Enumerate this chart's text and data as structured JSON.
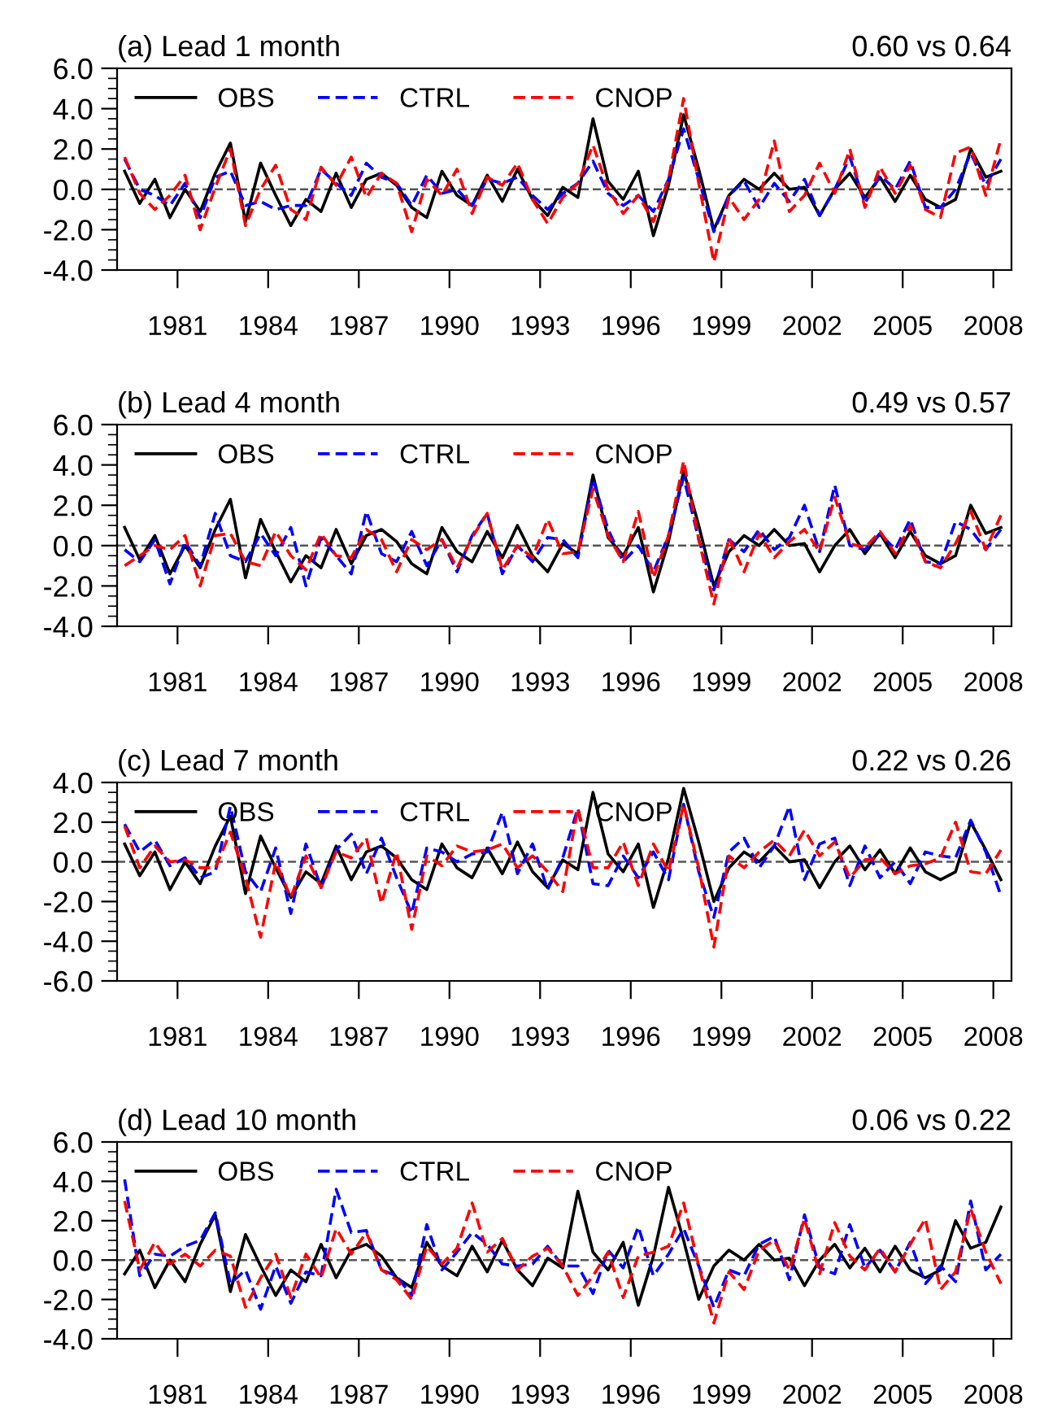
{
  "chart_data": [
    {
      "type": "line",
      "title": "(a) Lead 1 month",
      "annotations": [
        "0.60 vs 0.64"
      ],
      "x": [
        1979.25,
        1979.75,
        1980.25,
        1980.75,
        1981.25,
        1981.75,
        1982.25,
        1982.75,
        1983.25,
        1983.75,
        1984.25,
        1984.75,
        1985.25,
        1985.75,
        1986.25,
        1986.75,
        1987.25,
        1987.75,
        1988.25,
        1988.75,
        1989.25,
        1989.75,
        1990.25,
        1990.75,
        1991.25,
        1991.75,
        1992.25,
        1992.75,
        1993.25,
        1993.75,
        1994.25,
        1994.75,
        1995.25,
        1995.75,
        1996.25,
        1996.75,
        1997.25,
        1997.75,
        1998.25,
        1998.75,
        1999.25,
        1999.75,
        2000.25,
        2000.75,
        2001.25,
        2001.75,
        2002.25,
        2002.75,
        2003.25,
        2003.75,
        2004.25,
        2004.75,
        2005.25,
        2005.75,
        2006.25,
        2006.75,
        2007.25,
        2007.75,
        2008.25
      ],
      "series": [
        {
          "name": "OBS",
          "color": "#000000",
          "line_style": "solid",
          "values": [
            0.9,
            -0.7,
            0.5,
            -1.4,
            0.0,
            -1.1,
            0.8,
            2.3,
            -1.6,
            1.3,
            -0.3,
            -1.8,
            -0.5,
            -1.1,
            0.8,
            -0.9,
            0.5,
            0.8,
            0.2,
            -0.9,
            -1.4,
            0.9,
            -0.3,
            -0.8,
            0.7,
            -0.6,
            1.0,
            -0.5,
            -1.3,
            0.1,
            -0.4,
            3.5,
            0.4,
            -0.5,
            0.9,
            -2.3,
            0.2,
            3.7,
            1.0,
            -2.0,
            -0.3,
            0.5,
            0.0,
            0.8,
            0.0,
            0.1,
            -1.3,
            0.0,
            0.8,
            -0.4,
            0.6,
            -0.6,
            0.7,
            -0.5,
            -0.9,
            -0.5,
            2.0,
            0.6,
            0.9
          ]
        },
        {
          "name": "CTRL",
          "color": "#0000ff",
          "line_style": "dashed",
          "values": [
            1.5,
            0.0,
            -0.3,
            -0.8,
            0.3,
            -1.4,
            0.6,
            0.9,
            -0.8,
            -0.6,
            -1.0,
            -0.8,
            -0.8,
            1.0,
            0.3,
            -0.3,
            1.3,
            0.6,
            0.3,
            -0.8,
            0.7,
            -0.2,
            0.0,
            -0.8,
            0.5,
            0.3,
            0.6,
            -0.3,
            -1.0,
            -0.2,
            0.3,
            1.4,
            -0.2,
            -0.8,
            -0.3,
            -1.1,
            0.5,
            3.0,
            0.5,
            -2.1,
            -0.3,
            0.4,
            -0.9,
            0.3,
            -0.6,
            0.5,
            -1.3,
            0.0,
            1.6,
            -0.7,
            0.7,
            0.0,
            1.4,
            -0.9,
            -0.9,
            0.0,
            1.8,
            0.2,
            1.5
          ]
        },
        {
          "name": "CNOP",
          "color": "#ff0000",
          "line_style": "dashed",
          "values": [
            1.6,
            -0.2,
            -1.0,
            -0.3,
            0.7,
            -2.0,
            0.1,
            2.0,
            -1.8,
            0.0,
            1.2,
            -1.0,
            -1.5,
            1.1,
            0.2,
            1.6,
            -0.4,
            0.8,
            0.3,
            -2.1,
            0.5,
            -0.3,
            1.0,
            -1.2,
            0.6,
            0.2,
            1.3,
            -0.5,
            -1.7,
            -0.4,
            0.3,
            2.2,
            0.0,
            -1.2,
            -0.3,
            -1.6,
            0.5,
            4.5,
            0.3,
            -3.6,
            -0.4,
            -1.5,
            -0.5,
            2.4,
            -1.1,
            -0.3,
            1.3,
            -0.2,
            2.0,
            -0.9,
            1.1,
            -0.2,
            1.2,
            -1.0,
            -1.4,
            1.8,
            2.1,
            -0.3,
            2.5
          ]
        }
      ],
      "xlim": [
        1979,
        2008.6
      ],
      "xticks": [
        1981,
        1984,
        1987,
        1990,
        1993,
        1996,
        1999,
        2002,
        2005,
        2008
      ],
      "ylim": [
        -4,
        6
      ],
      "yticks": [
        {
          "value": -4,
          "label": "-4.0"
        },
        {
          "value": -2,
          "label": "-2.0"
        },
        {
          "value": 0,
          "label": "0.0"
        },
        {
          "value": 2,
          "label": "2.0"
        },
        {
          "value": 4,
          "label": "4.0"
        },
        {
          "value": 6,
          "label": "6.0"
        }
      ],
      "ref_lines": [
        {
          "axis": "y",
          "value": 0,
          "color": "#555555",
          "line_style": "dashed"
        }
      ],
      "legend": "top left",
      "grid": false
    },
    {
      "type": "line",
      "title": "(b) Lead 4 month",
      "annotations": [
        "0.49 vs 0.57"
      ],
      "x": [
        1979.25,
        1979.75,
        1980.25,
        1980.75,
        1981.25,
        1981.75,
        1982.25,
        1982.75,
        1983.25,
        1983.75,
        1984.25,
        1984.75,
        1985.25,
        1985.75,
        1986.25,
        1986.75,
        1987.25,
        1987.75,
        1988.25,
        1988.75,
        1989.25,
        1989.75,
        1990.25,
        1990.75,
        1991.25,
        1991.75,
        1992.25,
        1992.75,
        1993.25,
        1993.75,
        1994.25,
        1994.75,
        1995.25,
        1995.75,
        1996.25,
        1996.75,
        1997.25,
        1997.75,
        1998.25,
        1998.75,
        1999.25,
        1999.75,
        2000.25,
        2000.75,
        2001.25,
        2001.75,
        2002.25,
        2002.75,
        2003.25,
        2003.75,
        2004.25,
        2004.75,
        2005.25,
        2005.75,
        2006.25,
        2006.75,
        2007.25,
        2007.75,
        2008.25
      ],
      "series": [
        {
          "name": "OBS",
          "color": "#000000",
          "line_style": "solid",
          "values": [
            0.9,
            -0.7,
            0.5,
            -1.4,
            0.0,
            -1.1,
            0.8,
            2.3,
            -1.6,
            1.3,
            -0.3,
            -1.8,
            -0.5,
            -1.1,
            0.8,
            -0.9,
            0.5,
            0.8,
            0.2,
            -0.9,
            -1.4,
            0.9,
            -0.3,
            -0.8,
            0.7,
            -0.6,
            1.0,
            -0.5,
            -1.3,
            0.1,
            -0.4,
            3.5,
            0.4,
            -0.5,
            0.9,
            -2.3,
            0.2,
            3.7,
            1.0,
            -2.0,
            -0.3,
            0.5,
            0.0,
            0.8,
            0.0,
            0.1,
            -1.3,
            0.0,
            0.8,
            -0.4,
            0.6,
            -0.6,
            0.7,
            -0.5,
            -0.9,
            -0.5,
            2.0,
            0.6,
            0.9
          ]
        },
        {
          "name": "CTRL",
          "color": "#0000ff",
          "line_style": "dashed",
          "values": [
            -0.2,
            -0.8,
            0.3,
            -1.9,
            0.2,
            -1.0,
            1.6,
            -0.5,
            -0.8,
            0.6,
            -0.5,
            0.9,
            -2.0,
            0.4,
            -0.5,
            -1.4,
            1.7,
            -0.4,
            -0.8,
            0.7,
            -1.0,
            0.3,
            -1.3,
            0.5,
            1.6,
            -1.4,
            0.0,
            -0.8,
            0.4,
            0.3,
            -0.6,
            3.3,
            0.8,
            -0.8,
            0.0,
            -1.3,
            0.5,
            3.4,
            0.3,
            -2.2,
            0.3,
            -0.3,
            0.8,
            -0.2,
            0.4,
            2.0,
            -0.3,
            3.0,
            0.0,
            -0.2,
            0.6,
            -0.2,
            1.3,
            -0.8,
            -0.9,
            1.2,
            0.8,
            -0.2,
            0.8
          ]
        },
        {
          "name": "CNOP",
          "color": "#ff0000",
          "line_style": "dashed",
          "values": [
            -1.0,
            -0.5,
            0.0,
            -0.2,
            0.5,
            -2.0,
            0.5,
            0.6,
            -0.8,
            -1.0,
            0.7,
            -0.5,
            -1.2,
            0.6,
            -0.5,
            -0.6,
            0.8,
            0.3,
            -1.3,
            0.3,
            -0.2,
            0.3,
            -1.1,
            0.4,
            1.6,
            -1.2,
            0.0,
            -0.6,
            1.3,
            -0.4,
            -0.3,
            2.8,
            0.5,
            -0.8,
            1.7,
            -1.6,
            0.5,
            4.2,
            0.3,
            -2.9,
            0.4,
            -1.3,
            0.6,
            -0.6,
            0.2,
            0.8,
            -0.3,
            2.4,
            0.1,
            -0.1,
            0.7,
            -0.4,
            1.0,
            -0.8,
            -1.1,
            0.1,
            1.7,
            -0.2,
            1.5
          ]
        }
      ],
      "xlim": [
        1979,
        2008.6
      ],
      "xticks": [
        1981,
        1984,
        1987,
        1990,
        1993,
        1996,
        1999,
        2002,
        2005,
        2008
      ],
      "ylim": [
        -4,
        6
      ],
      "yticks": [
        {
          "value": -4,
          "label": "-4.0"
        },
        {
          "value": -2,
          "label": "-2.0"
        },
        {
          "value": 0,
          "label": "0.0"
        },
        {
          "value": 2,
          "label": "2.0"
        },
        {
          "value": 4,
          "label": "4.0"
        },
        {
          "value": 6,
          "label": "6.0"
        }
      ],
      "ref_lines": [
        {
          "axis": "y",
          "value": 0,
          "color": "#555555",
          "line_style": "dashed"
        }
      ],
      "legend": "top left",
      "grid": false
    },
    {
      "type": "line",
      "title": "(c) Lead 7 month",
      "annotations": [
        "0.22 vs 0.26"
      ],
      "x": [
        1979.25,
        1979.75,
        1980.25,
        1980.75,
        1981.25,
        1981.75,
        1982.25,
        1982.75,
        1983.25,
        1983.75,
        1984.25,
        1984.75,
        1985.25,
        1985.75,
        1986.25,
        1986.75,
        1987.25,
        1987.75,
        1988.25,
        1988.75,
        1989.25,
        1989.75,
        1990.25,
        1990.75,
        1991.25,
        1991.75,
        1992.25,
        1992.75,
        1993.25,
        1993.75,
        1994.25,
        1994.75,
        1995.25,
        1995.75,
        1996.25,
        1996.75,
        1997.25,
        1997.75,
        1998.25,
        1998.75,
        1999.25,
        1999.75,
        2000.25,
        2000.75,
        2001.25,
        2001.75,
        2002.25,
        2002.75,
        2003.25,
        2003.75,
        2004.25,
        2004.75,
        2005.25,
        2005.75,
        2006.25,
        2006.75,
        2007.25,
        2007.75,
        2008.25
      ],
      "series": [
        {
          "name": "OBS",
          "color": "#000000",
          "line_style": "solid",
          "values": [
            0.9,
            -0.7,
            0.5,
            -1.4,
            0.0,
            -1.1,
            0.8,
            2.3,
            -1.6,
            1.3,
            -0.3,
            -1.8,
            -0.5,
            -1.1,
            0.8,
            -0.9,
            0.5,
            0.8,
            0.2,
            -0.9,
            -1.4,
            0.9,
            -0.3,
            -0.8,
            0.7,
            -0.6,
            1.0,
            -0.5,
            -1.3,
            0.1,
            -0.4,
            3.5,
            0.4,
            -0.5,
            0.9,
            -2.3,
            0.2,
            3.7,
            1.0,
            -2.0,
            -0.3,
            0.5,
            0.0,
            0.8,
            0.0,
            0.1,
            -1.3,
            0.0,
            0.8,
            -0.4,
            0.6,
            -0.6,
            0.7,
            -0.5,
            -0.9,
            -0.5,
            2.0,
            0.6,
            -0.9
          ]
        },
        {
          "name": "CTRL",
          "color": "#0000ff",
          "line_style": "dashed",
          "values": [
            1.9,
            0.5,
            1.1,
            -0.2,
            0.2,
            -0.8,
            -0.5,
            2.8,
            -0.5,
            -1.5,
            0.7,
            -2.6,
            0.9,
            -1.3,
            0.6,
            1.4,
            -0.6,
            1.2,
            -0.8,
            -2.6,
            0.7,
            0.5,
            0.0,
            0.4,
            0.5,
            2.5,
            -0.6,
            0.9,
            -1.4,
            0.2,
            2.7,
            -1.1,
            -1.2,
            0.3,
            -0.8,
            0.5,
            -0.9,
            2.9,
            -0.5,
            -2.8,
            0.5,
            1.2,
            -0.3,
            0.8,
            2.8,
            -0.9,
            0.9,
            1.2,
            -1.2,
            0.8,
            -0.8,
            0.0,
            -1.1,
            0.5,
            0.3,
            0.2,
            2.1,
            0.5,
            -1.7
          ]
        },
        {
          "name": "CNOP",
          "color": "#ff0000",
          "line_style": "dashed",
          "values": [
            1.8,
            -0.3,
            0.8,
            0.0,
            0.1,
            -0.3,
            -0.3,
            1.5,
            -0.8,
            -3.8,
            0.0,
            -1.8,
            0.3,
            -1.3,
            0.5,
            0.2,
            1.2,
            -2.1,
            0.5,
            -3.4,
            0.3,
            -0.2,
            0.8,
            0.5,
            0.6,
            0.9,
            -0.3,
            0.3,
            -0.5,
            -1.5,
            2.7,
            -0.3,
            -0.3,
            1.0,
            -1.2,
            0.9,
            -0.5,
            2.9,
            -0.3,
            -4.3,
            0.3,
            -0.3,
            0.5,
            1.1,
            0.3,
            1.6,
            0.3,
            1.0,
            -0.8,
            0.1,
            0.2,
            -0.6,
            -0.2,
            -0.1,
            0.2,
            2.0,
            -0.5,
            -0.6,
            0.6
          ]
        }
      ],
      "xlim": [
        1979,
        2008.6
      ],
      "xticks": [
        1981,
        1984,
        1987,
        1990,
        1993,
        1996,
        1999,
        2002,
        2005,
        2008
      ],
      "ylim": [
        -6,
        4
      ],
      "yticks": [
        {
          "value": -6,
          "label": "-6.0"
        },
        {
          "value": -4,
          "label": "-4.0"
        },
        {
          "value": -2,
          "label": "-2.0"
        },
        {
          "value": 0,
          "label": "0.0"
        },
        {
          "value": 2,
          "label": "2.0"
        },
        {
          "value": 4,
          "label": "4.0"
        }
      ],
      "ref_lines": [
        {
          "axis": "y",
          "value": 0,
          "color": "#555555",
          "line_style": "dashed"
        }
      ],
      "legend": "top left",
      "grid": false
    },
    {
      "type": "line",
      "title": "(d) Lead 10 month",
      "annotations": [
        "0.06 vs 0.22"
      ],
      "x": [
        1979.25,
        1979.75,
        1980.25,
        1980.75,
        1981.25,
        1981.75,
        1982.25,
        1982.75,
        1983.25,
        1983.75,
        1984.25,
        1984.75,
        1985.25,
        1985.75,
        1986.25,
        1986.75,
        1987.25,
        1987.75,
        1988.25,
        1988.75,
        1989.25,
        1989.75,
        1990.25,
        1990.75,
        1991.25,
        1991.75,
        1992.25,
        1992.75,
        1993.25,
        1993.75,
        1994.25,
        1994.75,
        1995.25,
        1995.75,
        1996.25,
        1996.75,
        1997.25,
        1997.75,
        1998.25,
        1998.75,
        1999.25,
        1999.75,
        2000.25,
        2000.75,
        2001.25,
        2001.75,
        2002.25,
        2002.75,
        2003.25,
        2003.75,
        2004.25,
        2004.75,
        2005.25,
        2005.75,
        2006.25,
        2006.75,
        2007.25,
        2007.75,
        2008.25
      ],
      "series": [
        {
          "name": "OBS",
          "color": "#000000",
          "line_style": "solid",
          "values": [
            -0.7,
            0.5,
            -1.4,
            0.0,
            -1.1,
            0.8,
            2.3,
            -1.6,
            1.3,
            -0.3,
            -1.8,
            -0.5,
            -1.1,
            0.8,
            -0.9,
            0.5,
            0.8,
            0.2,
            -0.9,
            -1.4,
            0.9,
            -0.3,
            -0.8,
            0.7,
            -0.6,
            1.0,
            -0.5,
            -1.3,
            0.1,
            -0.4,
            3.5,
            0.4,
            -0.5,
            0.9,
            -2.3,
            0.2,
            3.7,
            1.0,
            -2.0,
            -0.3,
            0.5,
            0.0,
            0.8,
            0.0,
            0.1,
            -1.3,
            0.0,
            0.8,
            -0.4,
            0.6,
            -0.6,
            0.7,
            -0.5,
            -0.9,
            -0.5,
            2.0,
            0.6,
            0.9,
            2.7
          ]
        },
        {
          "name": "CTRL",
          "color": "#0000ff",
          "line_style": "dashed",
          "values": [
            4.1,
            -0.8,
            0.3,
            0.2,
            0.7,
            1.0,
            2.4,
            -1.2,
            -0.5,
            -2.5,
            -0.3,
            -2.2,
            -0.6,
            -0.8,
            3.6,
            1.4,
            1.5,
            -0.5,
            -0.8,
            -1.8,
            1.8,
            -0.5,
            0.4,
            1.4,
            0.8,
            -0.2,
            -0.3,
            -0.2,
            0.7,
            -0.3,
            -0.3,
            -1.7,
            0.5,
            -0.4,
            1.7,
            -0.8,
            0.3,
            1.6,
            -0.3,
            -2.4,
            -0.5,
            -0.8,
            0.8,
            1.2,
            -1.0,
            2.3,
            -0.4,
            -0.7,
            1.8,
            -0.4,
            0.5,
            -0.6,
            0.9,
            -1.2,
            -0.3,
            -1.1,
            3.0,
            -0.5,
            0.3
          ]
        },
        {
          "name": "CNOP",
          "color": "#ff0000",
          "line_style": "dashed",
          "values": [
            3.0,
            -0.5,
            0.9,
            -0.2,
            0.3,
            -0.3,
            0.5,
            0.2,
            -2.4,
            -0.9,
            0.3,
            -1.9,
            0.3,
            -0.9,
            1.6,
            0.3,
            1.4,
            -0.5,
            -1.0,
            -2.0,
            0.7,
            -0.2,
            0.6,
            2.9,
            0.4,
            1.1,
            -0.5,
            0.2,
            0.6,
            -0.3,
            -1.8,
            -0.8,
            0.4,
            -1.9,
            0.2,
            0.4,
            0.7,
            2.9,
            -0.3,
            -3.2,
            -0.6,
            -1.5,
            0.5,
            1.0,
            -0.5,
            2.1,
            -0.7,
            1.9,
            0.2,
            -0.5,
            0.6,
            -0.6,
            0.8,
            2.1,
            -1.5,
            -0.6,
            2.6,
            0.4,
            -1.2
          ]
        }
      ],
      "xlim": [
        1979,
        2008.6
      ],
      "xticks": [
        1981,
        1984,
        1987,
        1990,
        1993,
        1996,
        1999,
        2002,
        2005,
        2008
      ],
      "ylim": [
        -4,
        6
      ],
      "yticks": [
        {
          "value": -4,
          "label": "-4.0"
        },
        {
          "value": -2,
          "label": "-2.0"
        },
        {
          "value": 0,
          "label": "0.0"
        },
        {
          "value": 2,
          "label": "2.0"
        },
        {
          "value": 4,
          "label": "4.0"
        },
        {
          "value": 6,
          "label": "6.0"
        }
      ],
      "ref_lines": [
        {
          "axis": "y",
          "value": 0,
          "color": "#555555",
          "line_style": "dashed"
        }
      ],
      "legend": "top left",
      "grid": false
    }
  ]
}
